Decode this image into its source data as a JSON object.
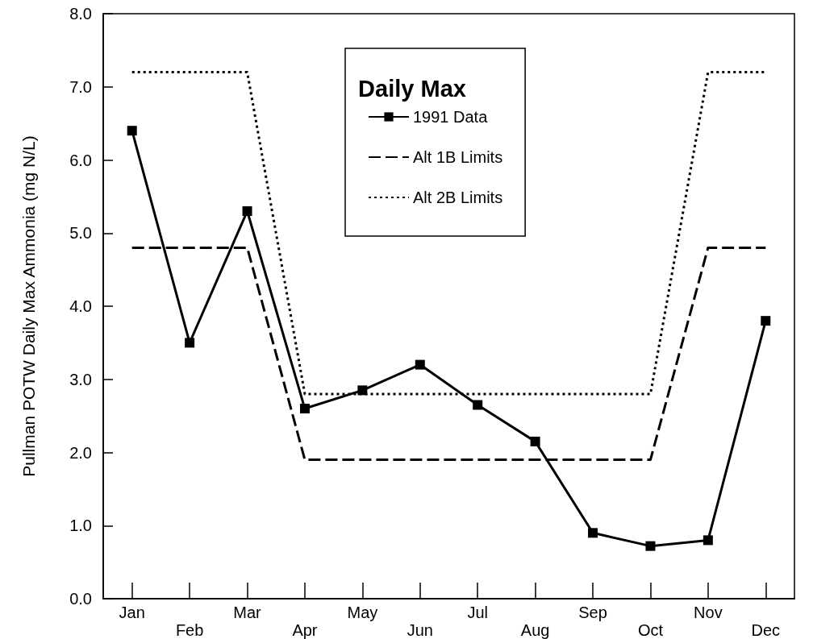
{
  "chart_data": {
    "type": "line",
    "ylabel": "Pullman POTW Daily Max Ammonia (mg N/L)",
    "legend_title": "Daily Max",
    "legend": "top",
    "grid": false,
    "categories": [
      "Jan",
      "Feb",
      "Mar",
      "Apr",
      "May",
      "Jun",
      "Jul",
      "Aug",
      "Sep",
      "Oct",
      "Nov",
      "Dec"
    ],
    "ylim": [
      0,
      8
    ],
    "yticks": [
      {
        "value": 0,
        "label": "0.0"
      },
      {
        "value": 1,
        "label": "1.0"
      },
      {
        "value": 2,
        "label": "2.0"
      },
      {
        "value": 3,
        "label": "3.0"
      },
      {
        "value": 4,
        "label": "4.0"
      },
      {
        "value": 5,
        "label": "5.0"
      },
      {
        "value": 6,
        "label": "6.0"
      },
      {
        "value": 7,
        "label": "7.0"
      },
      {
        "value": 8,
        "label": "8.0"
      }
    ],
    "series": [
      {
        "name": "1991 Data",
        "color": "#000000",
        "marker": "square",
        "line_style": "solid",
        "values": [
          6.4,
          3.5,
          5.3,
          2.6,
          2.85,
          3.2,
          2.65,
          2.15,
          0.9,
          0.72,
          0.8,
          3.8
        ]
      },
      {
        "name": "Alt 1B Limits",
        "color": "#000000",
        "marker": "none",
        "line_style": "dashed",
        "values": [
          4.8,
          4.8,
          4.8,
          1.9,
          1.9,
          1.9,
          1.9,
          1.9,
          1.9,
          1.9,
          4.8,
          4.8
        ]
      },
      {
        "name": "Alt 2B Limits",
        "color": "#000000",
        "marker": "none",
        "line_style": "dotted",
        "values": [
          7.2,
          7.2,
          7.2,
          2.8,
          2.8,
          2.8,
          2.8,
          2.8,
          2.8,
          2.8,
          7.2,
          7.2
        ]
      }
    ]
  }
}
